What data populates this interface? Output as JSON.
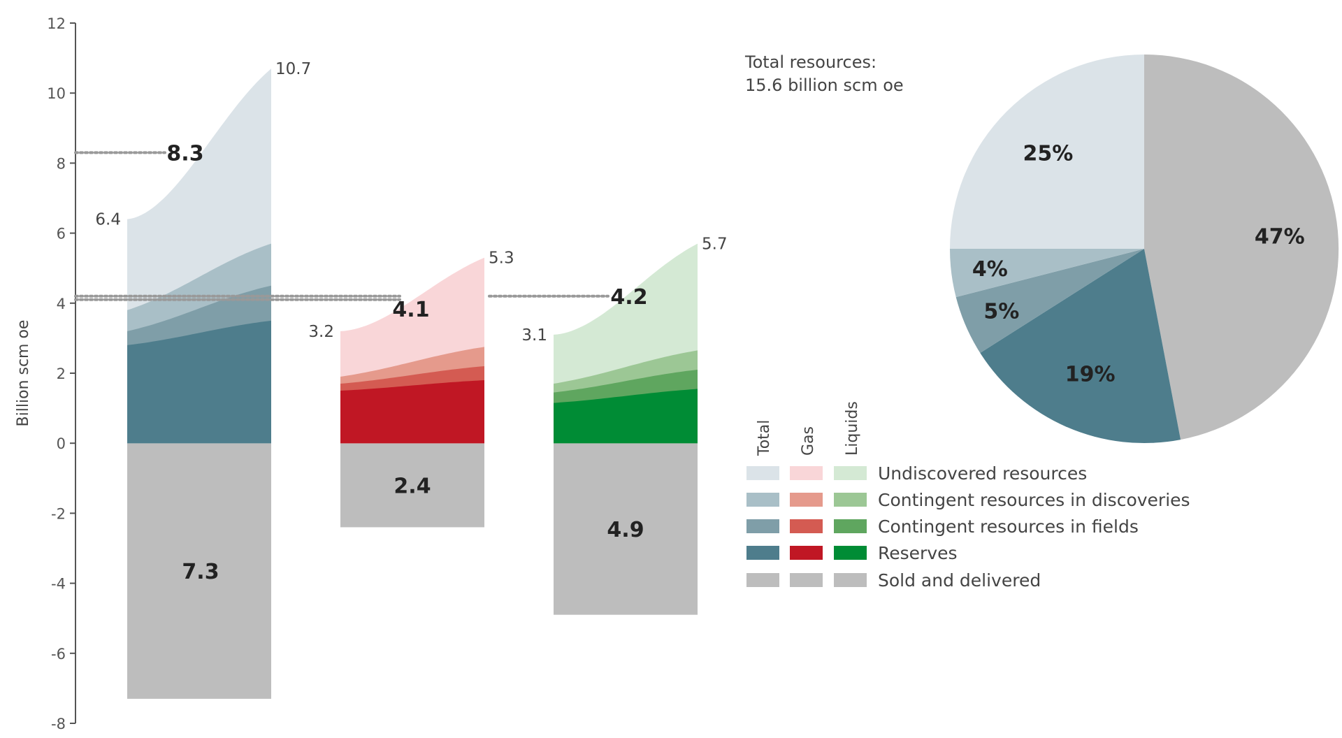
{
  "chart_data": [
    {
      "type": "area",
      "ylabel": "Billion scm oe",
      "ylim": [
        -8,
        12
      ],
      "yticks": [
        "12",
        "10",
        "8",
        "6",
        "4",
        "2",
        "0",
        "-2",
        "-4",
        "-6",
        "-8"
      ],
      "ytick_values": [
        12,
        10,
        8,
        6,
        4,
        2,
        0,
        -2,
        -4,
        -6,
        -8
      ],
      "layers": [
        "Reserves",
        "Contingent resources in fields",
        "Contingent resources in discoveries",
        "Undiscovered resources"
      ],
      "groups": [
        {
          "name": "Total",
          "sold_and_delivered": 7.3,
          "sold_label": "7.3",
          "expected": 8.3,
          "expected_label": "8.3",
          "low": 6.4,
          "low_label": "6.4",
          "high": 10.7,
          "high_label": "10.7",
          "left_edge": [
            2.8,
            3.2,
            3.8,
            6.4
          ],
          "right_edge": [
            3.5,
            4.5,
            5.7,
            10.7
          ],
          "colors": [
            "#4e7d8c",
            "#7f9ea8",
            "#a9bfc7",
            "#dbe3e8"
          ],
          "sold_color": "#bdbdbd"
        },
        {
          "name": "Gas",
          "sold_and_delivered": 2.4,
          "sold_label": "2.4",
          "expected": 4.1,
          "expected_label": "4.1",
          "low": 3.2,
          "low_label": "3.2",
          "high": 5.3,
          "high_label": "5.3",
          "left_edge": [
            1.5,
            1.7,
            1.9,
            3.2
          ],
          "right_edge": [
            1.8,
            2.2,
            2.75,
            5.3
          ],
          "colors": [
            "#c01724",
            "#d45b52",
            "#e59a8c",
            "#f9d6d8"
          ],
          "sold_color": "#bdbdbd"
        },
        {
          "name": "Liquids",
          "sold_and_delivered": 4.9,
          "sold_label": "4.9",
          "expected": 4.2,
          "expected_label": "4.2",
          "low": 3.1,
          "low_label": "3.1",
          "high": 5.7,
          "high_label": "5.7",
          "left_edge": [
            1.15,
            1.45,
            1.7,
            3.1
          ],
          "right_edge": [
            1.55,
            2.1,
            2.65,
            5.7
          ],
          "colors": [
            "#008c35",
            "#5fa65f",
            "#9cc795",
            "#d4e9d4"
          ],
          "sold_color": "#bdbdbd"
        }
      ]
    },
    {
      "type": "pie",
      "title_line1": "Total resources:",
      "title_line2": "15.6 billion scm oe",
      "slices": [
        {
          "label": "Sold and delivered",
          "value": 47,
          "text": "47%",
          "color": "#bdbdbd"
        },
        {
          "label": "Reserves",
          "value": 19,
          "text": "19%",
          "color": "#4e7d8c"
        },
        {
          "label": "Contingent resources in fields",
          "value": 5,
          "text": "5%",
          "color": "#7f9ea8"
        },
        {
          "label": "Contingent resources in discoveries",
          "value": 4,
          "text": "4%",
          "color": "#a9bfc7"
        },
        {
          "label": "Undiscovered resources",
          "value": 25,
          "text": "25%",
          "color": "#dbe3e8"
        }
      ]
    }
  ],
  "legend": {
    "headers": [
      "Total",
      "Gas",
      "Liquids"
    ],
    "rows": [
      {
        "label": "Undiscovered resources",
        "colors": [
          "#dbe3e8",
          "#f9d6d8",
          "#d4e9d4"
        ]
      },
      {
        "label": "Contingent resources in discoveries",
        "colors": [
          "#a9bfc7",
          "#e59a8c",
          "#9cc795"
        ]
      },
      {
        "label": "Contingent resources in fields",
        "colors": [
          "#7f9ea8",
          "#d45b52",
          "#5fa65f"
        ]
      },
      {
        "label": "Reserves",
        "colors": [
          "#4e7d8c",
          "#c01724",
          "#008c35"
        ]
      },
      {
        "label": "Sold and delivered",
        "colors": [
          "#bdbdbd",
          "#bdbdbd",
          "#bdbdbd"
        ]
      }
    ]
  }
}
